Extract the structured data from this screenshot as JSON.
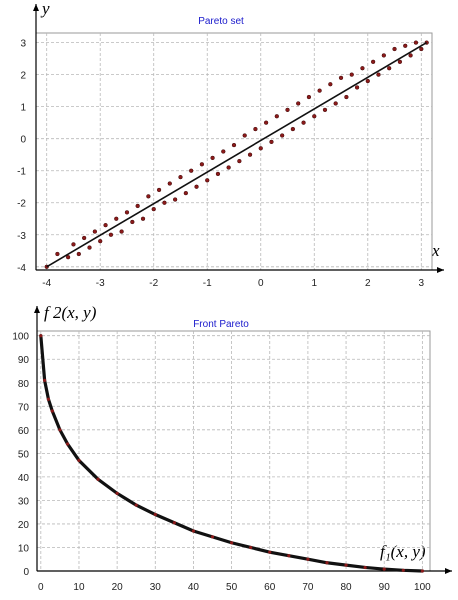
{
  "chart_data": [
    {
      "type": "scatter",
      "title": "Pareto set",
      "xlabel": "x",
      "ylabel": "y",
      "xlim": [
        -4.2,
        3.2
      ],
      "ylim": [
        -4.1,
        3.3
      ],
      "x_ticks": [
        "-4",
        "-3",
        "-2",
        "-1",
        "0",
        "1",
        "2",
        "3"
      ],
      "y_ticks": [
        "-4",
        "-3",
        "-2",
        "-1",
        "0",
        "1",
        "2",
        "3"
      ],
      "grid": true,
      "series": [
        {
          "values_description_points": [
            [
              -4.0,
              -4.0
            ],
            [
              -3.8,
              -3.6
            ],
            [
              -3.6,
              -3.7
            ],
            [
              -3.5,
              -3.3
            ],
            [
              -3.4,
              -3.6
            ],
            [
              -3.3,
              -3.1
            ],
            [
              -3.2,
              -3.4
            ],
            [
              -3.1,
              -2.9
            ],
            [
              -3.0,
              -3.2
            ],
            [
              -2.9,
              -2.7
            ],
            [
              -2.8,
              -3.0
            ],
            [
              -2.7,
              -2.5
            ],
            [
              -2.6,
              -2.9
            ],
            [
              -2.5,
              -2.3
            ],
            [
              -2.4,
              -2.6
            ],
            [
              -2.3,
              -2.1
            ],
            [
              -2.2,
              -2.5
            ],
            [
              -2.1,
              -1.8
            ],
            [
              -2.0,
              -2.2
            ],
            [
              -1.9,
              -1.6
            ],
            [
              -1.8,
              -2.0
            ],
            [
              -1.7,
              -1.4
            ],
            [
              -1.6,
              -1.9
            ],
            [
              -1.5,
              -1.2
            ],
            [
              -1.4,
              -1.7
            ],
            [
              -1.3,
              -1.0
            ],
            [
              -1.2,
              -1.5
            ],
            [
              -1.1,
              -0.8
            ],
            [
              -1.0,
              -1.3
            ],
            [
              -0.9,
              -0.6
            ],
            [
              -0.8,
              -1.1
            ],
            [
              -0.7,
              -0.4
            ],
            [
              -0.6,
              -0.9
            ],
            [
              -0.5,
              -0.2
            ],
            [
              -0.4,
              -0.7
            ],
            [
              -0.3,
              0.1
            ],
            [
              -0.2,
              -0.5
            ],
            [
              -0.1,
              0.3
            ],
            [
              0.0,
              -0.3
            ],
            [
              0.1,
              0.5
            ],
            [
              0.2,
              -0.1
            ],
            [
              0.3,
              0.7
            ],
            [
              0.4,
              0.1
            ],
            [
              0.5,
              0.9
            ],
            [
              0.6,
              0.3
            ],
            [
              0.7,
              1.1
            ],
            [
              0.8,
              0.5
            ],
            [
              0.9,
              1.3
            ],
            [
              1.0,
              0.7
            ],
            [
              1.1,
              1.5
            ],
            [
              1.2,
              0.9
            ],
            [
              1.3,
              1.7
            ],
            [
              1.4,
              1.1
            ],
            [
              1.5,
              1.9
            ],
            [
              1.6,
              1.3
            ],
            [
              1.7,
              2.0
            ],
            [
              1.8,
              1.6
            ],
            [
              1.9,
              2.2
            ],
            [
              2.0,
              1.8
            ],
            [
              2.1,
              2.4
            ],
            [
              2.2,
              2.0
            ],
            [
              2.3,
              2.6
            ],
            [
              2.4,
              2.2
            ],
            [
              2.5,
              2.8
            ],
            [
              2.6,
              2.4
            ],
            [
              2.7,
              2.9
            ],
            [
              2.8,
              2.6
            ],
            [
              2.9,
              3.0
            ],
            [
              3.0,
              2.8
            ],
            [
              3.1,
              3.0
            ]
          ]
        }
      ]
    },
    {
      "type": "scatter",
      "title": "Front Pareto",
      "xlabel": "f₁(x, y)",
      "ylabel": "f 2(x, y)",
      "xlim": [
        -1,
        102
      ],
      "ylim": [
        0,
        102
      ],
      "x_ticks": [
        "0",
        "10",
        "20",
        "30",
        "40",
        "50",
        "60",
        "70",
        "80",
        "90",
        "100"
      ],
      "y_ticks": [
        "0",
        "10",
        "20",
        "30",
        "40",
        "50",
        "60",
        "70",
        "80",
        "90",
        "100"
      ],
      "grid": true,
      "series": [
        {
          "x": [
            0,
            1,
            2,
            3,
            5,
            7,
            10,
            15,
            20,
            25,
            30,
            35,
            40,
            45,
            50,
            55,
            60,
            65,
            70,
            75,
            80,
            85,
            90,
            95,
            100
          ],
          "y": [
            100,
            81,
            73,
            68,
            60,
            54,
            47,
            39,
            33,
            28,
            24,
            20.5,
            17,
            14.5,
            12,
            10,
            8,
            6.5,
            5,
            3.5,
            2.5,
            1.5,
            0.8,
            0.3,
            0
          ]
        }
      ]
    }
  ]
}
